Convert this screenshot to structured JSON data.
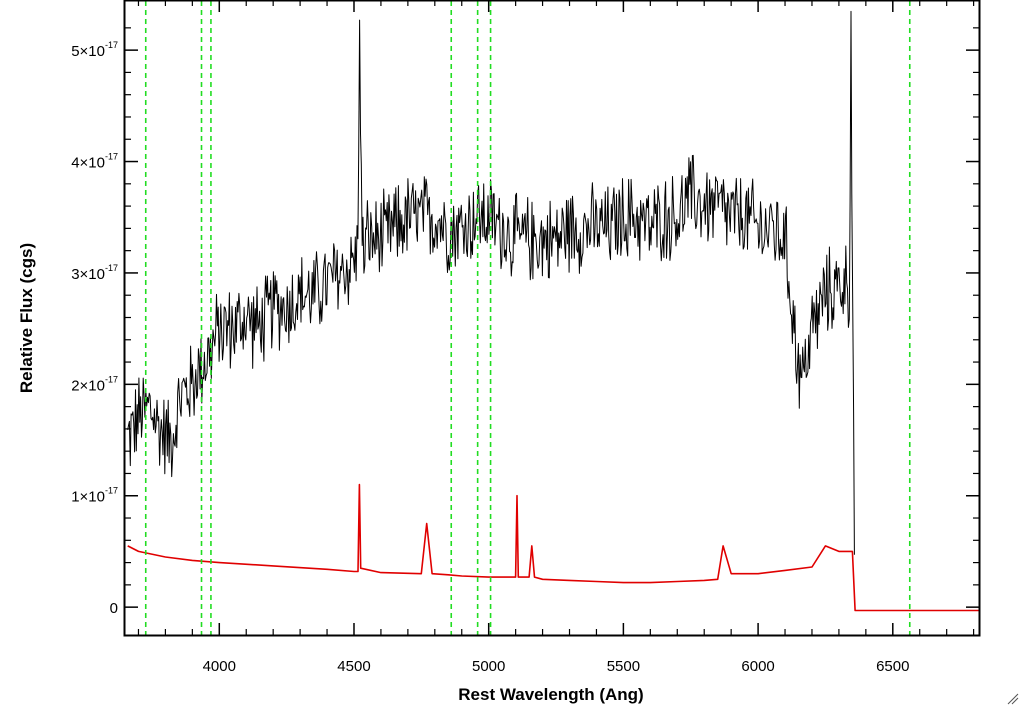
{
  "chart_data": {
    "type": "line",
    "xlabel": "Rest Wavelength (Ang)",
    "ylabel": "Relative Flux (cgs)",
    "xlim": [
      3650,
      6820
    ],
    "ylim": [
      -0.25,
      5.45
    ],
    "y_exponent_text": "-17",
    "x_ticks": [
      4000,
      4500,
      5000,
      5500,
      6000,
      6500
    ],
    "x_tick_labels": [
      "4000",
      "4500",
      "5000",
      "5500",
      "6000",
      "6500"
    ],
    "y_ticks": [
      0,
      1,
      2,
      3,
      4,
      5
    ],
    "y_tick_labels": [
      {
        "value": 0,
        "mantissa": "0",
        "exp": ""
      },
      {
        "value": 1,
        "mantissa": "1×10",
        "exp": "-17"
      },
      {
        "value": 2,
        "mantissa": "2×10",
        "exp": "-17"
      },
      {
        "value": 3,
        "mantissa": "3×10",
        "exp": "-17"
      },
      {
        "value": 4,
        "mantissa": "4×10",
        "exp": "-17"
      },
      {
        "value": 5,
        "mantissa": "5×10",
        "exp": "-17"
      }
    ],
    "vertical_reference_lines": [
      3727,
      3934,
      3969,
      4861,
      4959,
      5007,
      6563
    ],
    "series": [
      {
        "color": "#000000",
        "style": "noisy spectrum",
        "x": [
          3660,
          3700,
          3740,
          3780,
          3820,
          3860,
          3900,
          3940,
          3970,
          4000,
          4050,
          4100,
          4150,
          4200,
          4250,
          4300,
          4350,
          4400,
          4450,
          4500,
          4515,
          4520,
          4530,
          4550,
          4600,
          4650,
          4700,
          4750,
          4800,
          4850,
          4900,
          4950,
          5000,
          5050,
          5100,
          5150,
          5200,
          5250,
          5300,
          5350,
          5400,
          5450,
          5500,
          5550,
          5600,
          5650,
          5700,
          5750,
          5800,
          5850,
          5900,
          5950,
          6000,
          6050,
          6100,
          6130,
          6160,
          6200,
          6250,
          6300,
          6340,
          6345,
          6350,
          6360
        ],
        "y": [
          1.5,
          1.7,
          1.8,
          1.6,
          1.5,
          1.9,
          2.0,
          2.2,
          2.3,
          2.5,
          2.5,
          2.6,
          2.5,
          2.7,
          2.7,
          2.8,
          2.8,
          2.9,
          3.0,
          3.1,
          3.2,
          5.45,
          3.2,
          3.3,
          3.3,
          3.4,
          3.5,
          3.5,
          3.5,
          3.4,
          3.4,
          3.5,
          3.5,
          3.4,
          3.3,
          3.3,
          3.3,
          3.3,
          3.4,
          3.4,
          3.4,
          3.4,
          3.5,
          3.5,
          3.4,
          3.5,
          3.5,
          3.7,
          3.6,
          3.6,
          3.5,
          3.5,
          3.4,
          3.4,
          3.3,
          2.6,
          2.0,
          2.5,
          2.8,
          2.9,
          2.9,
          5.45,
          2.9,
          0.0
        ]
      },
      {
        "color": "#e00000",
        "style": "smooth with emission features",
        "x": [
          3660,
          3700,
          3800,
          3900,
          4000,
          4200,
          4400,
          4500,
          4515,
          4520,
          4525,
          4600,
          4750,
          4770,
          4790,
          4850,
          4900,
          5000,
          5050,
          5100,
          5105,
          5110,
          5150,
          5160,
          5170,
          5200,
          5300,
          5400,
          5500,
          5600,
          5700,
          5800,
          5850,
          5870,
          5900,
          6000,
          6100,
          6200,
          6250,
          6300,
          6340,
          6350,
          6360,
          6820
        ],
        "y": [
          0.55,
          0.5,
          0.45,
          0.42,
          0.4,
          0.37,
          0.34,
          0.32,
          0.32,
          1.1,
          0.35,
          0.31,
          0.3,
          0.75,
          0.3,
          0.29,
          0.28,
          0.27,
          0.27,
          0.27,
          1.0,
          0.27,
          0.27,
          0.55,
          0.27,
          0.25,
          0.24,
          0.23,
          0.22,
          0.22,
          0.23,
          0.24,
          0.25,
          0.55,
          0.3,
          0.3,
          0.33,
          0.36,
          0.55,
          0.5,
          0.5,
          0.5,
          -0.03,
          -0.03
        ]
      }
    ]
  }
}
